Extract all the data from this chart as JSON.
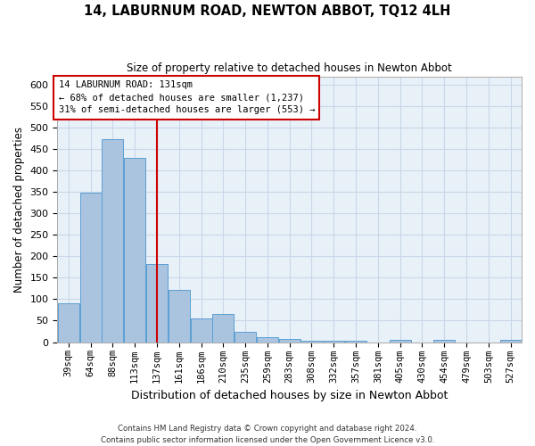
{
  "title": "14, LABURNUM ROAD, NEWTON ABBOT, TQ12 4LH",
  "subtitle": "Size of property relative to detached houses in Newton Abbot",
  "xlabel": "Distribution of detached houses by size in Newton Abbot",
  "ylabel": "Number of detached properties",
  "categories": [
    "39sqm",
    "64sqm",
    "88sqm",
    "113sqm",
    "137sqm",
    "161sqm",
    "186sqm",
    "210sqm",
    "235sqm",
    "259sqm",
    "283sqm",
    "308sqm",
    "332sqm",
    "357sqm",
    "381sqm",
    "405sqm",
    "430sqm",
    "454sqm",
    "479sqm",
    "503sqm",
    "527sqm"
  ],
  "values": [
    90,
    348,
    473,
    430,
    183,
    122,
    55,
    65,
    25,
    12,
    8,
    3,
    3,
    3,
    0,
    5,
    0,
    5,
    0,
    0,
    6
  ],
  "bar_color": "#aac4e0",
  "bar_edge_color": "#5a9fd4",
  "red_line_index": 4,
  "red_line_color": "#cc0000",
  "annotation_line1": "14 LABURNUM ROAD: 131sqm",
  "annotation_line2": "← 68% of detached houses are smaller (1,237)",
  "annotation_line3": "31% of semi-detached houses are larger (553) →",
  "annotation_box_color": "#ffffff",
  "annotation_box_edge": "#cc0000",
  "ylim": [
    0,
    620
  ],
  "yticks": [
    0,
    50,
    100,
    150,
    200,
    250,
    300,
    350,
    400,
    450,
    500,
    550,
    600
  ],
  "grid_color": "#c8d8e8",
  "background_color": "#e8f0f8",
  "footer_line1": "Contains HM Land Registry data © Crown copyright and database right 2024.",
  "footer_line2": "Contains public sector information licensed under the Open Government Licence v3.0."
}
